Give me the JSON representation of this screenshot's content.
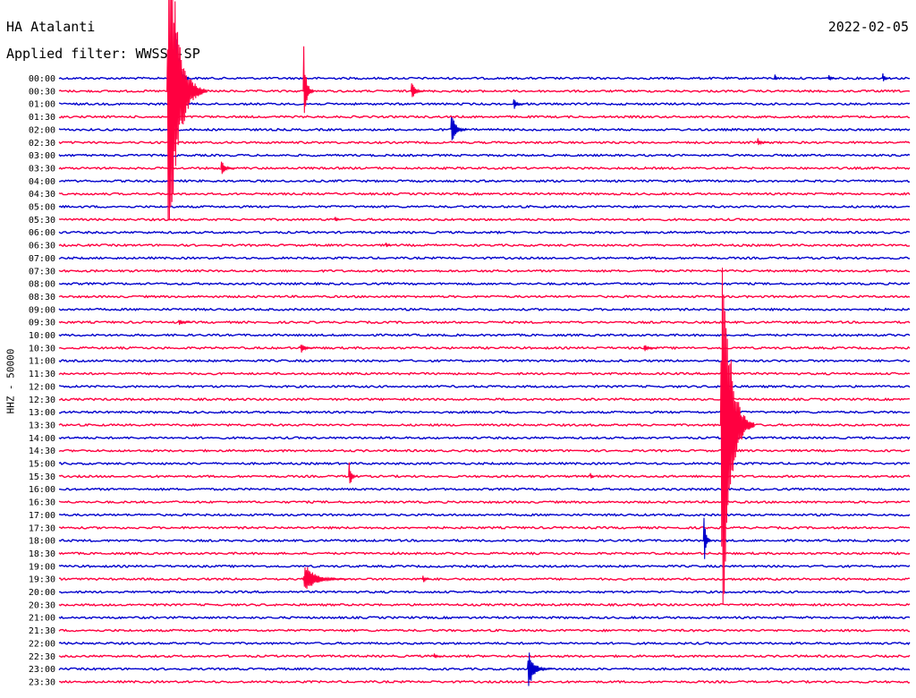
{
  "header": {
    "station": "HA Atalanti",
    "filter": "Applied filter: WWSSN-SP",
    "date": "2022-02-05"
  },
  "chart_data": {
    "type": "line",
    "title": "HA Atalanti",
    "subtitle": "Applied filter: WWSSN-SP",
    "date": "2022-02-05",
    "ylabel": "HHZ - 50000",
    "row_labels": [
      "00:00",
      "00:30",
      "01:00",
      "01:30",
      "02:00",
      "02:30",
      "03:00",
      "03:30",
      "04:00",
      "04:30",
      "05:00",
      "05:30",
      "06:00",
      "06:30",
      "07:00",
      "07:30",
      "08:00",
      "08:30",
      "09:00",
      "09:30",
      "10:00",
      "10:30",
      "11:00",
      "11:30",
      "12:00",
      "12:30",
      "13:00",
      "13:30",
      "14:00",
      "14:30",
      "15:00",
      "15:30",
      "16:00",
      "16:30",
      "17:00",
      "17:30",
      "18:00",
      "18:30",
      "19:00",
      "19:30",
      "20:00",
      "20:30",
      "21:00",
      "21:30",
      "22:00",
      "22:30",
      "23:00",
      "23:30"
    ],
    "minutes_per_row": 30,
    "trace_colors": [
      "#0000cc",
      "#ff0040"
    ],
    "events": [
      {
        "row": 0,
        "minute": 4.1,
        "amp": 95,
        "dur": 0.5
      },
      {
        "row": 1,
        "minute": 3.8,
        "amp": 240,
        "dur": 1.4
      },
      {
        "row": 1,
        "minute": 8.6,
        "amp": 55,
        "dur": 0.4
      },
      {
        "row": 1,
        "minute": 12.4,
        "amp": 12,
        "dur": 0.5
      },
      {
        "row": 2,
        "minute": 16.0,
        "amp": 8,
        "dur": 0.4
      },
      {
        "row": 4,
        "minute": 13.8,
        "amp": 22,
        "dur": 0.6
      },
      {
        "row": 5,
        "minute": 24.6,
        "amp": 6,
        "dur": 0.4
      },
      {
        "row": 7,
        "minute": 5.7,
        "amp": 10,
        "dur": 0.5
      },
      {
        "row": 0,
        "minute": 25.2,
        "amp": 6,
        "dur": 0.2
      },
      {
        "row": 0,
        "minute": 27.1,
        "amp": 5,
        "dur": 0.3
      },
      {
        "row": 0,
        "minute": 29.0,
        "amp": 7,
        "dur": 0.3
      },
      {
        "row": 11,
        "minute": 9.7,
        "amp": 4,
        "dur": 0.3
      },
      {
        "row": 13,
        "minute": 11.5,
        "amp": 5,
        "dur": 0.2
      },
      {
        "row": 19,
        "minute": 4.2,
        "amp": 4,
        "dur": 0.5
      },
      {
        "row": 21,
        "minute": 8.5,
        "amp": 7,
        "dur": 0.5
      },
      {
        "row": 21,
        "minute": 20.6,
        "amp": 5,
        "dur": 0.5
      },
      {
        "row": 27,
        "minute": 23.3,
        "amp": 290,
        "dur": 1.2
      },
      {
        "row": 36,
        "minute": 22.7,
        "amp": 40,
        "dur": 0.3
      },
      {
        "row": 31,
        "minute": 10.2,
        "amp": 22,
        "dur": 0.3
      },
      {
        "row": 31,
        "minute": 18.7,
        "amp": 8,
        "dur": 0.1
      },
      {
        "row": 39,
        "minute": 8.6,
        "amp": 18,
        "dur": 1.6
      },
      {
        "row": 39,
        "minute": 12.8,
        "amp": 6,
        "dur": 0.3
      },
      {
        "row": 46,
        "minute": 16.5,
        "amp": 22,
        "dur": 0.9
      },
      {
        "row": 45,
        "minute": 13.2,
        "amp": 4,
        "dur": 0.3
      }
    ]
  }
}
